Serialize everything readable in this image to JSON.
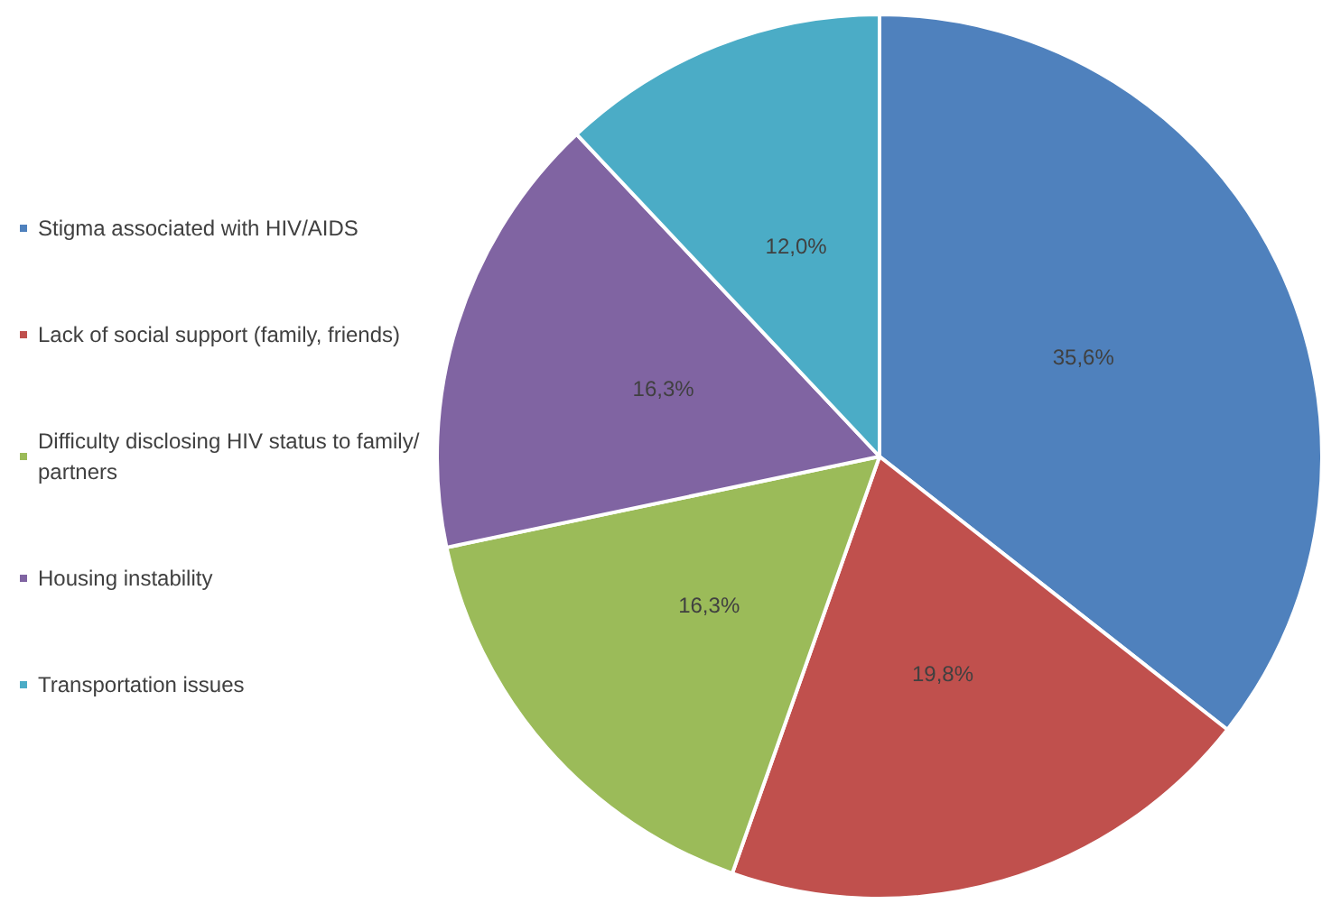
{
  "chart_data": {
    "type": "pie",
    "categories": [
      "Stigma associated with HIV/AIDS",
      "Lack of social support (family, friends)",
      "Difficulty disclosing HIV status to family/partners",
      "Housing instability",
      "Transportation issues"
    ],
    "values": [
      35.6,
      19.8,
      16.3,
      16.3,
      12.0
    ],
    "value_labels": [
      "35,6%",
      "19,8%",
      "16,3%",
      "16,3%",
      "12,0%"
    ],
    "colors": [
      "#4f81bd",
      "#c0504d",
      "#9bbb59",
      "#8064a2",
      "#4bacc6"
    ],
    "legend": "left"
  }
}
